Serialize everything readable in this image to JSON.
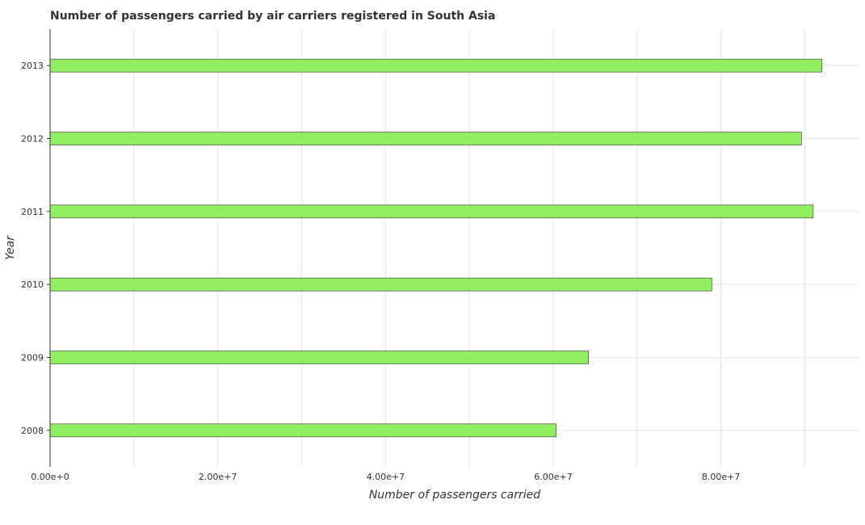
{
  "chart_data": {
    "type": "bar",
    "orientation": "horizontal",
    "title": "Number of passengers carried by air carriers registered in South Asia",
    "xlabel": "Number of passengers carried",
    "ylabel": "Year",
    "categories": [
      "2008",
      "2009",
      "2010",
      "2011",
      "2012",
      "2013"
    ],
    "values": [
      60350000,
      64200000,
      78900000,
      91000000,
      89600000,
      92050000
    ],
    "xlim": [
      0,
      96500000
    ],
    "xticks": [
      0,
      20000000,
      40000000,
      60000000,
      80000000
    ],
    "xtick_labels": [
      "0.00e+0",
      "2.00e+7",
      "4.00e+7",
      "6.00e+7",
      "8.00e+7"
    ],
    "grid": true,
    "bar_color": "#90ee60"
  }
}
